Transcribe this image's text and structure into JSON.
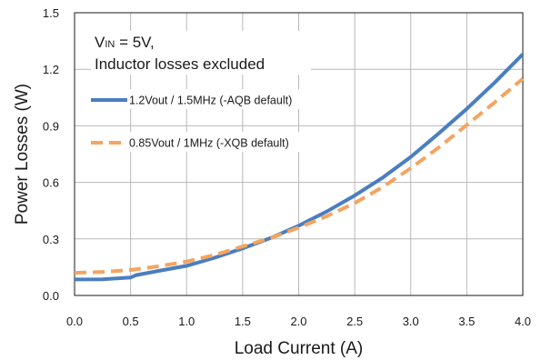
{
  "chart_data": {
    "type": "line",
    "xlabel": "Load Current (A)",
    "ylabel": "Power Losses (W)",
    "xlim": [
      0,
      4.0
    ],
    "ylim": [
      0,
      1.5
    ],
    "x_ticks": [
      "0.0",
      "0.5",
      "1.0",
      "1.5",
      "2.0",
      "2.5",
      "3.0",
      "3.5",
      "4.0"
    ],
    "y_ticks": [
      "0.0",
      "0.3",
      "0.6",
      "0.9",
      "1.2",
      "1.5"
    ],
    "grid": true,
    "annotation": {
      "v": "V",
      "sub": "IN",
      "rest": " = 5V,",
      "line2": "Inductor losses excluded"
    },
    "legend_position": "top-left",
    "series": [
      {
        "name": "1.2Vout / 1.5MHz (-AQB default)",
        "color": "#4a7ebf",
        "style": "solid",
        "x": [
          0,
          0.25,
          0.5,
          0.55,
          0.75,
          1.0,
          1.25,
          1.5,
          1.75,
          2.0,
          2.25,
          2.5,
          2.75,
          3.0,
          3.25,
          3.5,
          3.75,
          4.0
        ],
        "y": [
          0.085,
          0.086,
          0.095,
          0.108,
          0.13,
          0.157,
          0.2,
          0.25,
          0.305,
          0.37,
          0.445,
          0.53,
          0.625,
          0.735,
          0.86,
          0.99,
          1.13,
          1.28
        ]
      },
      {
        "name": "0.85Vout / 1MHz (-XQB default)",
        "color": "#f4a460",
        "style": "dashed",
        "x": [
          0,
          0.25,
          0.5,
          0.75,
          1.0,
          1.25,
          1.5,
          1.75,
          2.0,
          2.25,
          2.5,
          2.75,
          3.0,
          3.25,
          3.5,
          3.75,
          4.0
        ],
        "y": [
          0.12,
          0.125,
          0.135,
          0.155,
          0.18,
          0.215,
          0.26,
          0.305,
          0.36,
          0.42,
          0.49,
          0.575,
          0.675,
          0.785,
          0.905,
          1.025,
          1.15
        ]
      }
    ]
  }
}
